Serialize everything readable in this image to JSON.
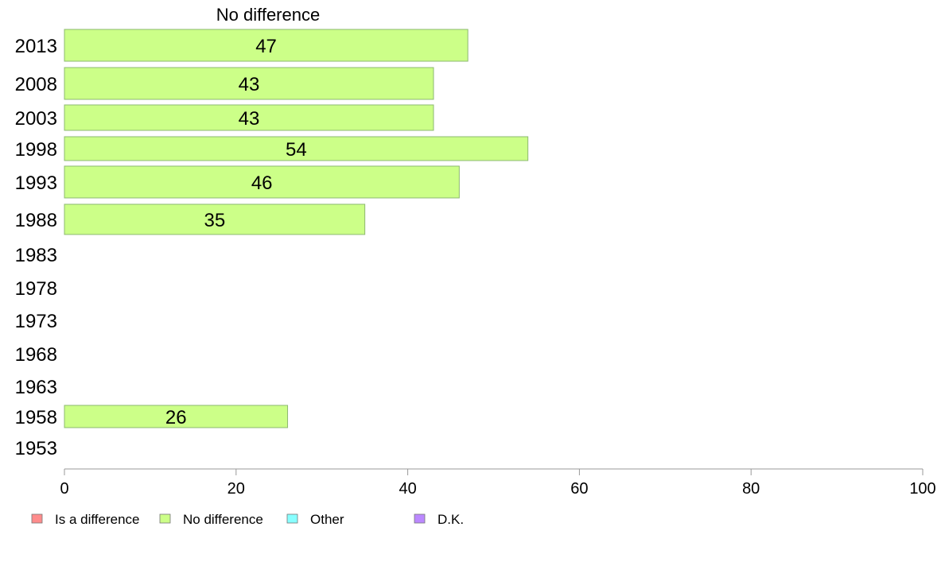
{
  "chart_data": {
    "type": "bar",
    "orientation": "horizontal",
    "title": "No difference",
    "categories": [
      "2013",
      "2008",
      "2003",
      "1998",
      "1993",
      "1988",
      "1983",
      "1978",
      "1973",
      "1968",
      "1963",
      "1958",
      "1953"
    ],
    "series": [
      {
        "name": "No difference",
        "values": [
          47,
          43,
          43,
          54,
          46,
          35,
          null,
          null,
          null,
          null,
          null,
          26,
          null
        ],
        "data_labels": [
          "47",
          "43",
          "43",
          "54",
          "46",
          "35",
          "",
          "",
          "",
          "",
          "",
          "26",
          ""
        ]
      }
    ],
    "xlim": [
      0,
      100
    ],
    "xticks": [
      "0",
      "20",
      "40",
      "60",
      "80",
      "100"
    ],
    "xlabel": "",
    "ylabel": "",
    "grid": false,
    "legend_position": "bottom",
    "legend": [
      {
        "label": "Is a difference",
        "color": "#ff8c8c"
      },
      {
        "label": "No difference",
        "color": "#ccff88"
      },
      {
        "label": "Other",
        "color": "#88ffff"
      },
      {
        "label": "D.K.",
        "color": "#bb88ff"
      }
    ],
    "colors": {
      "bar": "#ccff88",
      "bar_stroke": "#8db870",
      "axis": "#999999"
    }
  }
}
